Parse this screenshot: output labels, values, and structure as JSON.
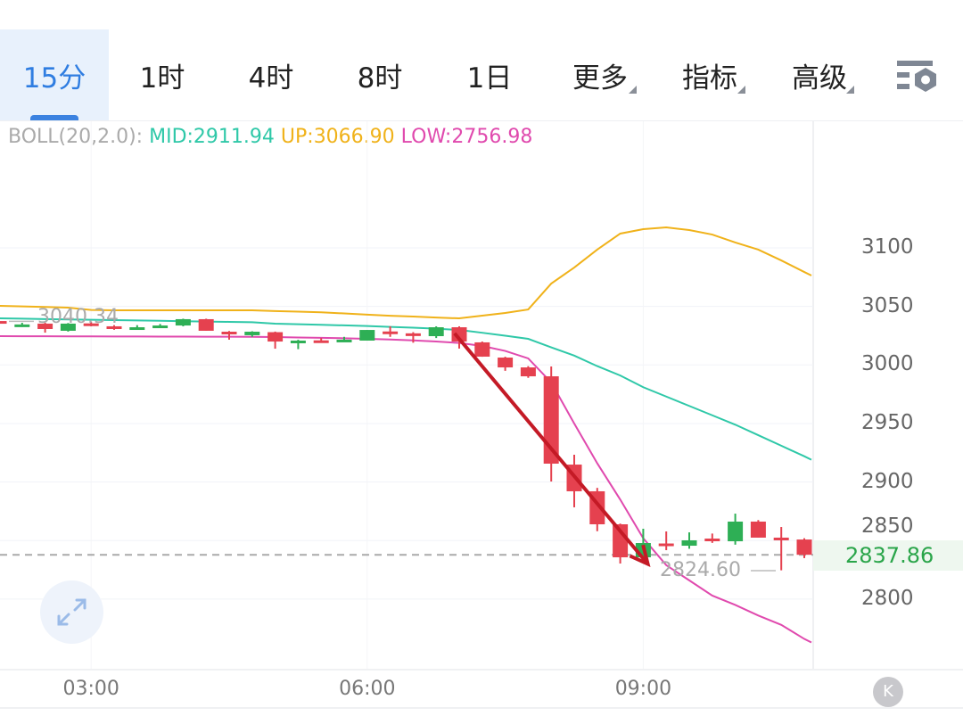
{
  "toolbar": {
    "tabs": [
      {
        "label": "15分",
        "active": true
      },
      {
        "label": "1时"
      },
      {
        "label": "4时"
      },
      {
        "label": "8时"
      },
      {
        "label": "1日"
      },
      {
        "label": "更多",
        "dropdown": true
      },
      {
        "label": "指标",
        "dropdown": true
      },
      {
        "label": "高级",
        "dropdown": true
      }
    ],
    "settings_icon": "chart-settings-icon"
  },
  "legend": {
    "name": "BOLL(20,2.0):",
    "mid": "MID:2911.94",
    "up": "UP:3066.90",
    "low": "LOW:2756.98"
  },
  "colors": {
    "accent": "#2f7de1",
    "up_candle": "#2eaf55",
    "down_candle": "#e5414f",
    "boll_mid": "#2fc8a8",
    "boll_up": "#f0b21a",
    "boll_low": "#e04aae",
    "arrow": "#c41a26"
  },
  "price_tag": "2837.86",
  "high_label": "3040.34",
  "low_label": "2824.60",
  "k_button": "K",
  "chart_data": {
    "type": "candlestick",
    "yticks": [
      "3100",
      "3050",
      "3000",
      "2950",
      "2900",
      "2850",
      "2800"
    ],
    "ylim": [
      2765,
      3190
    ],
    "xticks": [
      {
        "index": 4,
        "label": "03:00"
      },
      {
        "index": 16,
        "label": "06:00"
      },
      {
        "index": 28,
        "label": "09:00"
      }
    ],
    "last_price": 2837.86,
    "candles": [
      [
        3037.5,
        3040.34,
        3034.5,
        3035.3
      ],
      [
        3034.3,
        3036,
        3032.5,
        3034.6
      ],
      [
        3035.3,
        3036,
        3027.6,
        3030.7
      ],
      [
        3029.2,
        3035.8,
        3028.5,
        3035.3
      ],
      [
        3035.5,
        3037,
        3033,
        3035.0
      ],
      [
        3033.0,
        3034,
        3030,
        3030.7
      ],
      [
        3032.0,
        3034,
        3030.5,
        3032.2
      ],
      [
        3033.5,
        3035,
        3032.5,
        3033.7
      ],
      [
        3033.7,
        3039.5,
        3033,
        3039.1
      ],
      [
        3039.1,
        3039.5,
        3029.2,
        3029.2
      ],
      [
        3028.4,
        3029,
        3021.6,
        3026.9
      ],
      [
        3025.4,
        3028.8,
        3024,
        3028.4
      ],
      [
        3028.0,
        3028.5,
        3013.9,
        3020.0
      ],
      [
        3020.6,
        3021.5,
        3013.5,
        3020.8
      ],
      [
        3021.0,
        3023,
        3019,
        3020.8
      ],
      [
        3021.0,
        3024,
        3020,
        3021.6
      ],
      [
        3020.8,
        3029.9,
        3020.8,
        3029.9
      ],
      [
        3028.6,
        3033,
        3024,
        3028.4
      ],
      [
        3027.0,
        3028,
        3019,
        3026.9
      ],
      [
        3024.6,
        3033,
        3023,
        3032.2
      ],
      [
        3032.2,
        3033,
        3014,
        3020.0
      ],
      [
        3019.3,
        3020,
        3007,
        3007.1
      ],
      [
        3006.3,
        3007,
        2995,
        2997.9
      ],
      [
        2997.9,
        2999,
        2989,
        2990.3
      ],
      [
        2990.3,
        2998.7,
        2900.5,
        2915.7
      ],
      [
        2914.9,
        2923.3,
        2878.4,
        2892.1
      ],
      [
        2892.1,
        2895,
        2858,
        2863.9
      ],
      [
        2863.9,
        2864.5,
        2830.4,
        2835.7
      ],
      [
        2835.7,
        2860.1,
        2834,
        2847.9
      ],
      [
        2847.5,
        2857.8,
        2841.8,
        2846.4
      ],
      [
        2845.6,
        2857,
        2843,
        2850.2
      ],
      [
        2851.7,
        2856,
        2848,
        2851.2
      ],
      [
        2849.4,
        2873.0,
        2846.5,
        2866.2
      ],
      [
        2866.2,
        2867.5,
        2852.5,
        2852.5
      ],
      [
        2852.5,
        2861.6,
        2824.6,
        2852.0
      ],
      [
        2850.9,
        2852,
        2835,
        2837.86
      ]
    ],
    "boll_up": [
      3050.5,
      3050,
      3049.5,
      3049,
      3047,
      3046.7,
      3046.7,
      3046.7,
      3046.7,
      3046.7,
      3046.7,
      3046.7,
      3046,
      3045.5,
      3045,
      3044,
      3043,
      3042,
      3041.4,
      3040.5,
      3039.8,
      3042.1,
      3044.4,
      3047.4,
      3069.5,
      3083.2,
      3098.5,
      3112.2,
      3116,
      3117.5,
      3115.2,
      3111.4,
      3104.6,
      3098.5,
      3089.3,
      3079.4
    ],
    "boll_mid": [
      3039.8,
      3039.5,
      3039.2,
      3038.9,
      3038.6,
      3038.3,
      3038,
      3037.7,
      3037.4,
      3037.1,
      3036.8,
      3036.5,
      3035.3,
      3034.8,
      3034.3,
      3033.8,
      3033.3,
      3032.5,
      3031.8,
      3031,
      3029.9,
      3027.5,
      3025,
      3022.3,
      3015,
      3008,
      2999,
      2991,
      2981,
      2973,
      2965,
      2957,
      2949,
      2940,
      2931,
      2922
    ],
    "boll_low": [
      3024.6,
      3024.5,
      3024.5,
      3024.4,
      3024.4,
      3024.3,
      3024.3,
      3024.2,
      3024.2,
      3024.1,
      3024.1,
      3024,
      3023.8,
      3023.5,
      3023.2,
      3022.8,
      3022.3,
      3021.7,
      3021,
      3020,
      3018.8,
      3016.2,
      3012,
      3005.6,
      2985,
      2950,
      2916,
      2885,
      2852,
      2829,
      2816,
      2803,
      2795,
      2786,
      2778,
      2766
    ],
    "annotation_arrow": {
      "from": {
        "index": 19.8,
        "price": 3027
      },
      "to": {
        "index": 28.2,
        "price": 2830
      }
    }
  }
}
